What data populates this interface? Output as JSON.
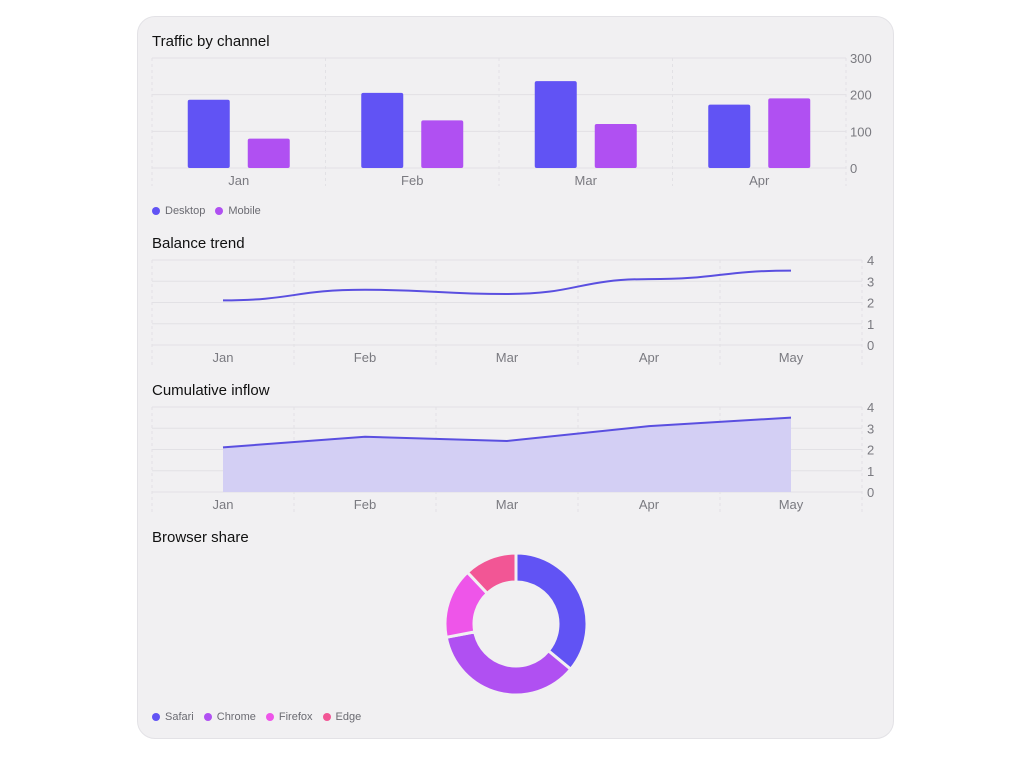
{
  "colors": {
    "desktop": "#6153f4",
    "mobile": "#b050f2",
    "line": "#5a4fe0",
    "area": "#d3cff4",
    "safari": "#6153f4",
    "chrome": "#b050f2",
    "firefox": "#ee55e9",
    "edge": "#f25695",
    "grid": "#e2e1e5",
    "tick": "#7a7a80"
  },
  "chart_data": [
    {
      "type": "bar",
      "title": "Traffic by channel",
      "categories": [
        "Jan",
        "Feb",
        "Mar",
        "Apr"
      ],
      "series": [
        {
          "name": "Desktop",
          "values": [
            186,
            205,
            237,
            173
          ]
        },
        {
          "name": "Mobile",
          "values": [
            80,
            130,
            120,
            190
          ]
        }
      ],
      "ylim": [
        0,
        300
      ],
      "yticks": [
        0,
        100,
        200,
        300
      ],
      "ylabel": "",
      "xlabel": "",
      "grid": true,
      "legend": "bottom-left"
    },
    {
      "type": "line",
      "title": "Balance trend",
      "x": [
        "Jan",
        "Feb",
        "Mar",
        "Apr",
        "May"
      ],
      "values": [
        2.1,
        2.6,
        2.4,
        3.1,
        3.5
      ],
      "ylim": [
        0,
        4
      ],
      "yticks": [
        0,
        1,
        2,
        3,
        4
      ],
      "ylabel": "",
      "xlabel": "",
      "grid": true
    },
    {
      "type": "area",
      "title": "Cumulative inflow",
      "x": [
        "Jan",
        "Feb",
        "Mar",
        "Apr",
        "May"
      ],
      "values": [
        2.1,
        2.6,
        2.4,
        3.1,
        3.5
      ],
      "ylim": [
        0,
        4
      ],
      "yticks": [
        0,
        1,
        2,
        3,
        4
      ],
      "ylabel": "",
      "xlabel": "",
      "grid": true
    },
    {
      "type": "pie",
      "title": "Browser share",
      "categories": [
        "Safari",
        "Chrome",
        "Firefox",
        "Edge"
      ],
      "values": [
        36,
        36,
        16,
        12
      ],
      "legend": "bottom-left"
    }
  ]
}
